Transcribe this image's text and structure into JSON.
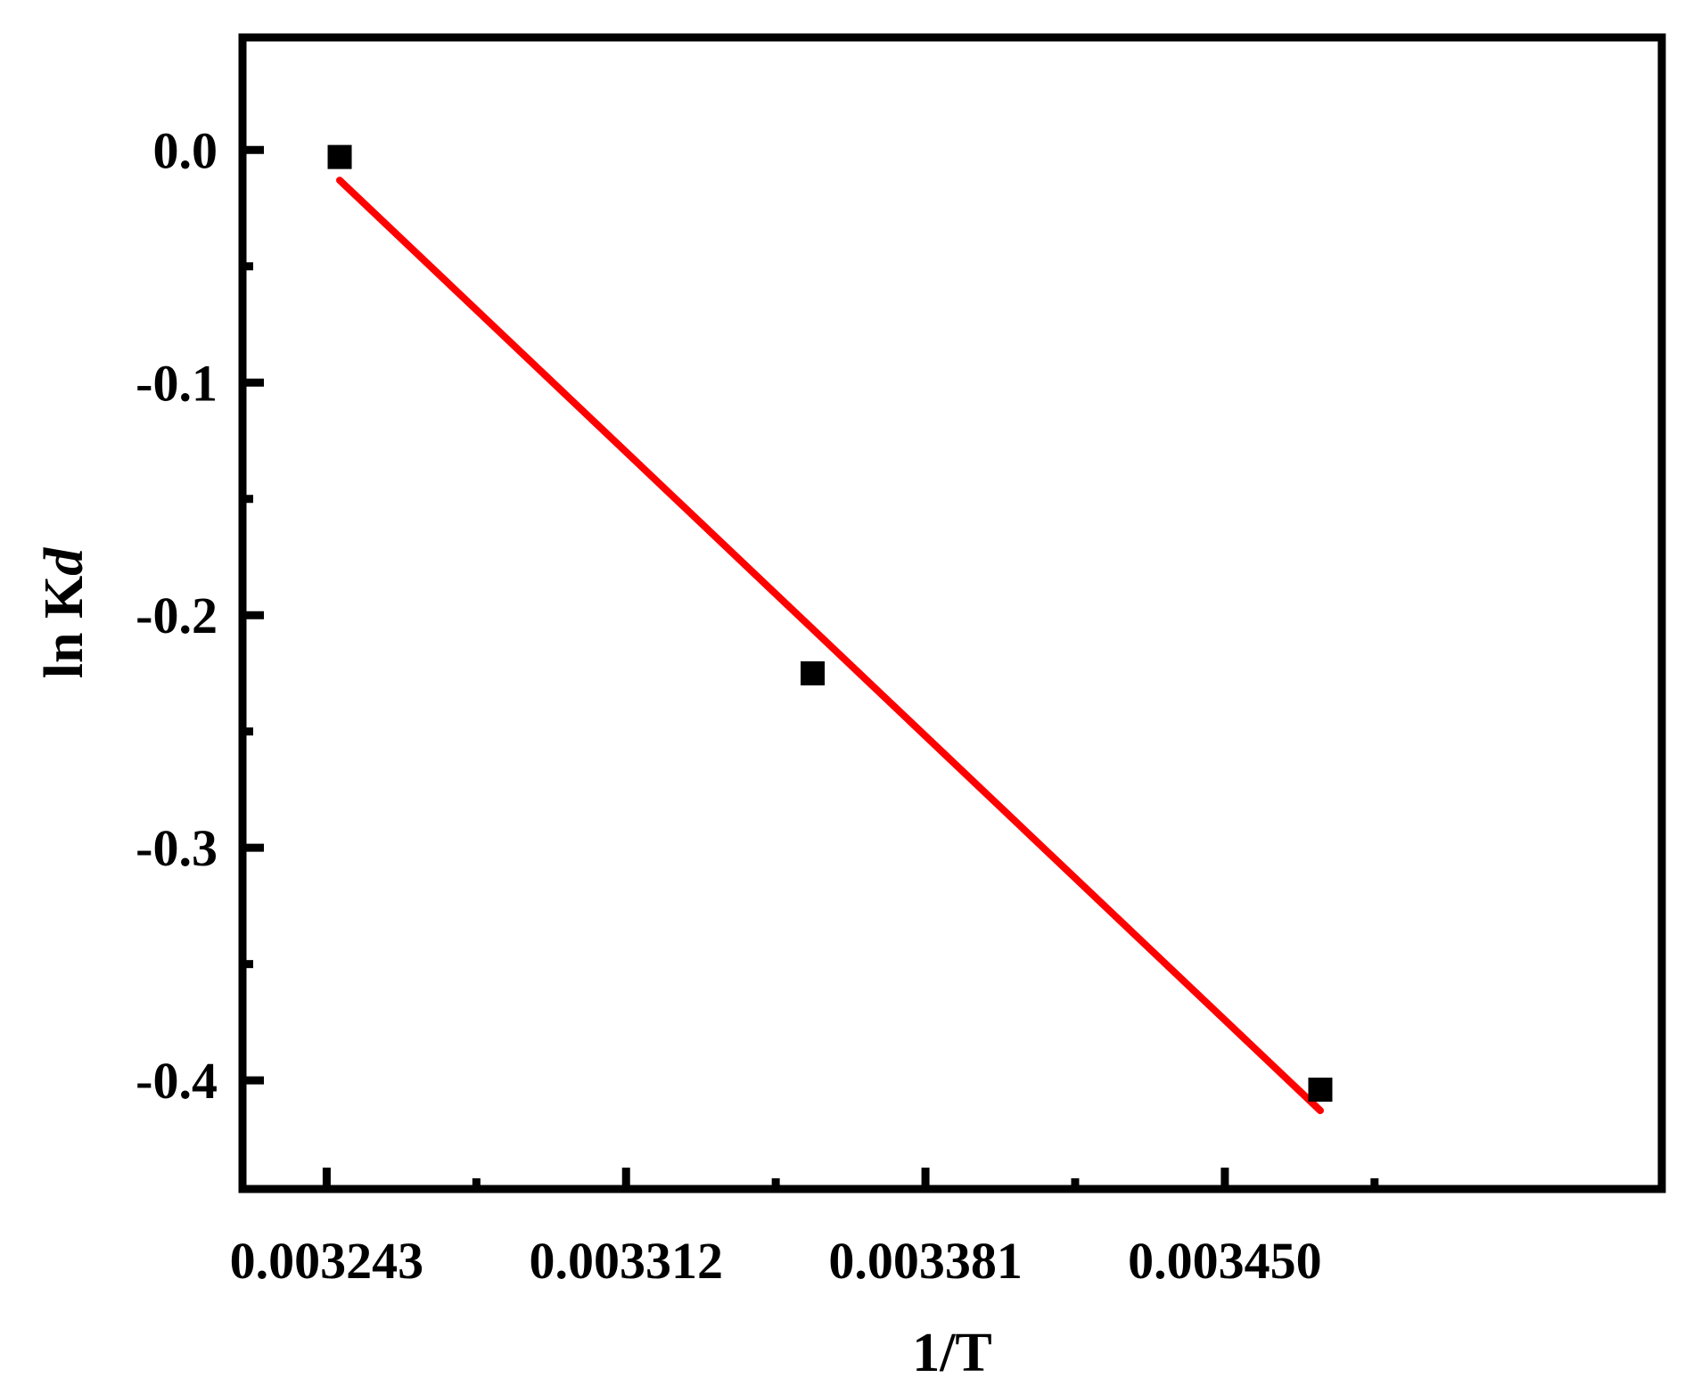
{
  "chart_data": {
    "type": "scatter",
    "title": "",
    "xlabel": "1/T",
    "ylabel": "ln K",
    "ylabel_subscript": "d",
    "xlim": [
      0.0032236,
      0.0035507
    ],
    "ylim": [
      -0.4467,
      0.0484
    ],
    "x_ticks": [
      {
        "value": 0.003243,
        "label": "0.003243"
      },
      {
        "value": 0.003312,
        "label": "0.003312"
      },
      {
        "value": 0.003381,
        "label": "0.003381"
      },
      {
        "value": 0.00345,
        "label": "0.003450"
      }
    ],
    "x_minor_ticks": [
      0.0032775,
      0.0033465,
      0.0034155,
      0.0034845
    ],
    "y_ticks": [
      {
        "value": 0.0,
        "label": "0.0"
      },
      {
        "value": -0.1,
        "label": "-0.1"
      },
      {
        "value": -0.2,
        "label": "-0.2"
      },
      {
        "value": -0.3,
        "label": "-0.3"
      },
      {
        "value": -0.4,
        "label": "-0.4"
      }
    ],
    "y_minor_ticks": [
      -0.05,
      -0.15,
      -0.25,
      -0.35
    ],
    "grid": false,
    "legend": "none",
    "series": [
      {
        "kind": "points",
        "marker": "square",
        "color": "#000000",
        "x": [
          0.003246,
          0.003355,
          0.003472
        ],
        "y": [
          -0.003,
          -0.225,
          -0.404
        ]
      },
      {
        "kind": "fit-line",
        "color": "#ff0000",
        "x": [
          0.003246,
          0.003472
        ],
        "y": [
          -0.013,
          -0.413
        ]
      }
    ]
  }
}
